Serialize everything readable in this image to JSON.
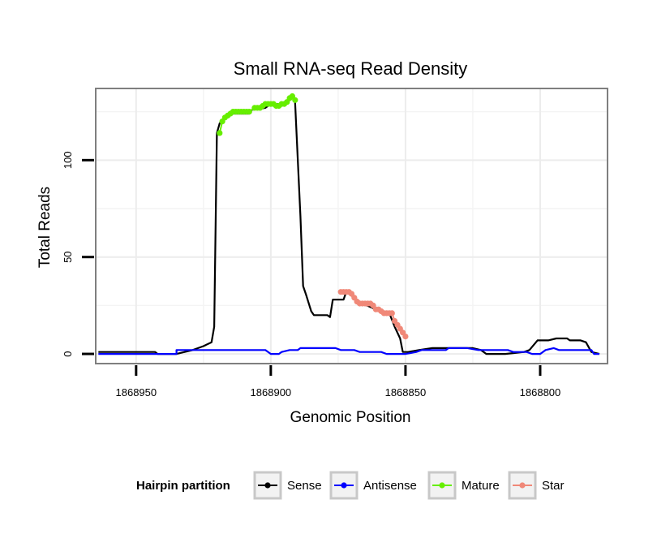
{
  "chart_data": {
    "type": "line",
    "title": "Small RNA-seq Read Density",
    "xlabel": "Genomic Position",
    "ylabel": "Total Reads",
    "x_reversed": true,
    "xlim": [
      1868965,
      1868775
    ],
    "ylim": [
      -5,
      137
    ],
    "grid": true,
    "x_ticks": [
      1868950,
      1868900,
      1868850,
      1868800
    ],
    "x_tick_labels": [
      "1868950",
      "1868900",
      "1868850",
      "1868800"
    ],
    "y_ticks": [
      0,
      50,
      100
    ],
    "y_tick_labels": [
      "0",
      "50",
      "100"
    ],
    "legend": {
      "title": "Hairpin partition",
      "placement": "bottom",
      "entries": [
        {
          "name": "Sense",
          "color": "#000000"
        },
        {
          "name": "Antisense",
          "color": "#0000ff"
        },
        {
          "name": "Mature",
          "color": "#66ee00"
        },
        {
          "name": "Star",
          "color": "#f08878"
        }
      ]
    },
    "series": [
      {
        "name": "Sense",
        "color": "#000000",
        "points": [
          [
            1868964,
            1
          ],
          [
            1868957,
            1
          ],
          [
            1868943,
            1
          ],
          [
            1868942,
            0
          ],
          [
            1868935,
            0
          ],
          [
            1868932,
            1
          ],
          [
            1868929,
            2
          ],
          [
            1868927,
            3
          ],
          [
            1868925,
            4
          ],
          [
            1868922,
            6
          ],
          [
            1868921,
            14
          ],
          [
            1868920,
            114
          ],
          [
            1868919,
            119
          ],
          [
            1868917,
            122
          ],
          [
            1868915,
            124
          ],
          [
            1868908,
            124
          ],
          [
            1868907,
            126
          ],
          [
            1868902,
            127
          ],
          [
            1868900,
            129
          ],
          [
            1868895,
            129
          ],
          [
            1868893,
            131
          ],
          [
            1868892,
            133
          ],
          [
            1868891,
            130
          ],
          [
            1868889,
            71
          ],
          [
            1868888,
            35
          ],
          [
            1868887,
            31
          ],
          [
            1868885,
            22
          ],
          [
            1868884,
            20
          ],
          [
            1868879,
            20
          ],
          [
            1868878,
            19
          ],
          [
            1868877,
            28
          ],
          [
            1868873,
            28
          ],
          [
            1868872,
            32
          ],
          [
            1868866,
            26
          ],
          [
            1868861,
            23
          ],
          [
            1868856,
            21
          ],
          [
            1868854,
            14
          ],
          [
            1868852,
            8
          ],
          [
            1868851,
            1
          ],
          [
            1868849,
            1
          ],
          [
            1868845,
            2
          ],
          [
            1868840,
            3
          ],
          [
            1868835,
            3
          ],
          [
            1868825,
            3
          ],
          [
            1868822,
            2
          ],
          [
            1868820,
            0
          ],
          [
            1868813,
            0
          ],
          [
            1868806,
            1
          ],
          [
            1868804,
            2
          ],
          [
            1868801,
            7
          ],
          [
            1868797,
            7
          ],
          [
            1868794,
            8
          ],
          [
            1868790,
            8
          ],
          [
            1868789,
            7
          ],
          [
            1868785,
            7
          ],
          [
            1868783,
            6
          ],
          [
            1868781,
            1
          ],
          [
            1868778,
            0
          ]
        ]
      },
      {
        "name": "Antisense",
        "color": "#0000ff",
        "points": [
          [
            1868964,
            0
          ],
          [
            1868935,
            0
          ],
          [
            1868935,
            2
          ],
          [
            1868902,
            2
          ],
          [
            1868900,
            0
          ],
          [
            1868897,
            0
          ],
          [
            1868896,
            1
          ],
          [
            1868893,
            2
          ],
          [
            1868890,
            2
          ],
          [
            1868889,
            3
          ],
          [
            1868876,
            3
          ],
          [
            1868874,
            2
          ],
          [
            1868869,
            2
          ],
          [
            1868867,
            1
          ],
          [
            1868859,
            1
          ],
          [
            1868857,
            0
          ],
          [
            1868850,
            0
          ],
          [
            1868846,
            1
          ],
          [
            1868844,
            2
          ],
          [
            1868835,
            2
          ],
          [
            1868834,
            3
          ],
          [
            1868827,
            3
          ],
          [
            1868823,
            2
          ],
          [
            1868812,
            2
          ],
          [
            1868810,
            1
          ],
          [
            1868805,
            1
          ],
          [
            1868803,
            0
          ],
          [
            1868800,
            0
          ],
          [
            1868798,
            2
          ],
          [
            1868795,
            3
          ],
          [
            1868793,
            2
          ],
          [
            1868781,
            2
          ],
          [
            1868780,
            0
          ],
          [
            1868778,
            0
          ]
        ]
      },
      {
        "name": "Mature",
        "color": "#66ee00",
        "points": [
          [
            1868919,
            114
          ],
          [
            1868918,
            120
          ],
          [
            1868917,
            122
          ],
          [
            1868916,
            123
          ],
          [
            1868915,
            124
          ],
          [
            1868914,
            125
          ],
          [
            1868913,
            125
          ],
          [
            1868912,
            125
          ],
          [
            1868911,
            125
          ],
          [
            1868910,
            125
          ],
          [
            1868909,
            125
          ],
          [
            1868908,
            125
          ],
          [
            1868906,
            127
          ],
          [
            1868905,
            127
          ],
          [
            1868904,
            127
          ],
          [
            1868903,
            128
          ],
          [
            1868902,
            129
          ],
          [
            1868901,
            129
          ],
          [
            1868900,
            129
          ],
          [
            1868899,
            129
          ],
          [
            1868898,
            128
          ],
          [
            1868897,
            128
          ],
          [
            1868896,
            129
          ],
          [
            1868895,
            129
          ],
          [
            1868894,
            130
          ],
          [
            1868893,
            132
          ],
          [
            1868892,
            133
          ],
          [
            1868891,
            131
          ]
        ]
      },
      {
        "name": "Star",
        "color": "#f08878",
        "points": [
          [
            1868874,
            32
          ],
          [
            1868873,
            32
          ],
          [
            1868872,
            32
          ],
          [
            1868871,
            32
          ],
          [
            1868870,
            31
          ],
          [
            1868869,
            29
          ],
          [
            1868868,
            27
          ],
          [
            1868867,
            26
          ],
          [
            1868866,
            26
          ],
          [
            1868865,
            26
          ],
          [
            1868864,
            26
          ],
          [
            1868863,
            26
          ],
          [
            1868862,
            25
          ],
          [
            1868861,
            23
          ],
          [
            1868860,
            23
          ],
          [
            1868859,
            22
          ],
          [
            1868858,
            21
          ],
          [
            1868857,
            21
          ],
          [
            1868856,
            21
          ],
          [
            1868855,
            21
          ],
          [
            1868854,
            17
          ],
          [
            1868853,
            15
          ],
          [
            1868852,
            13
          ],
          [
            1868851,
            11
          ],
          [
            1868850,
            9
          ]
        ]
      }
    ]
  }
}
